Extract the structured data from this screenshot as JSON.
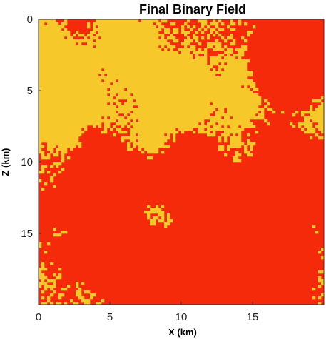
{
  "chart_data": {
    "type": "heatmap",
    "title": "Final Binary Field",
    "xlabel": "X (km)",
    "ylabel": "Z (km)",
    "xlim": [
      0,
      20
    ],
    "ylim": [
      0,
      20
    ],
    "y_direction": "down",
    "x_ticks": [
      0,
      5,
      10,
      15
    ],
    "y_ticks": [
      0,
      5,
      10,
      15
    ],
    "x_tick_labels": [
      "0",
      "5",
      "10",
      "15"
    ],
    "y_tick_labels": [
      "0",
      "5",
      "10",
      "15"
    ],
    "classes": [
      {
        "value": 0,
        "color": "#f52a0b"
      },
      {
        "value": 1,
        "color": "#f6c829"
      }
    ],
    "colormap": "binary red/yellow",
    "grid": false,
    "legend": "none"
  }
}
